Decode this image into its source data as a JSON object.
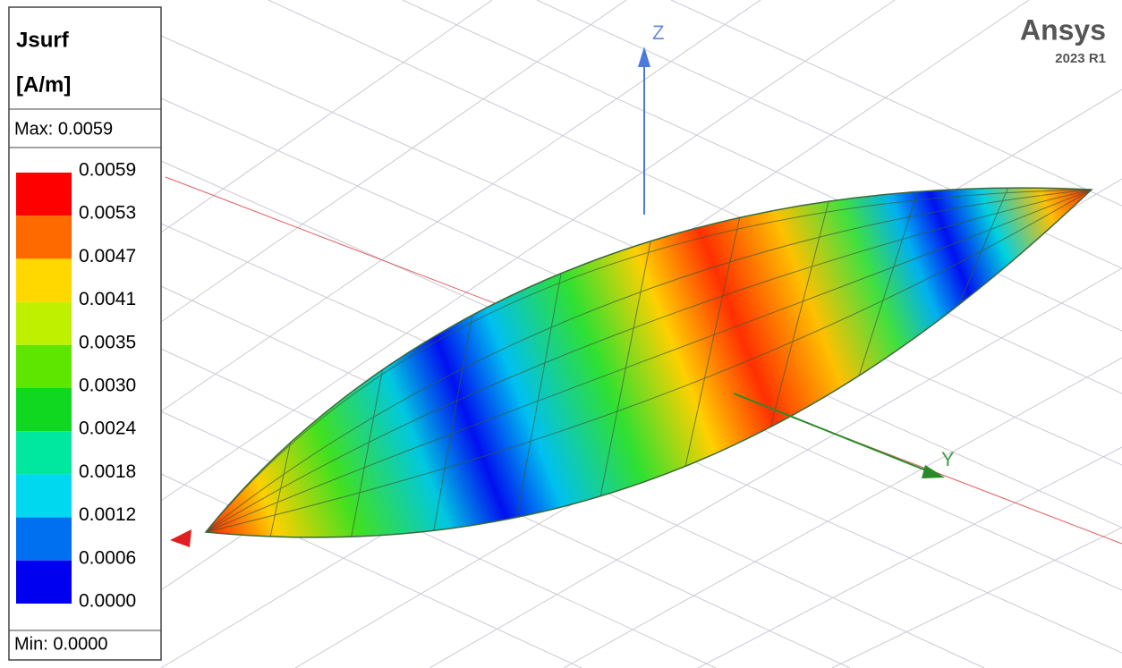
{
  "legend": {
    "quantity": "Jsurf",
    "unit": "[A/m]",
    "max": "Max: 0.0059",
    "min": "Min: 0.0000",
    "scale_labels": [
      "0.0059",
      "0.0053",
      "0.0047",
      "0.0041",
      "0.0035",
      "0.0030",
      "0.0024",
      "0.0018",
      "0.0012",
      "0.0006",
      "0.0000"
    ],
    "colors": [
      "#ff0000",
      "#ff6a00",
      "#ffd800",
      "#bff000",
      "#5fe600",
      "#10d820",
      "#00e8a0",
      "#00d8f0",
      "#0070f0",
      "#0000f0"
    ]
  },
  "branding": {
    "name": "Ansys",
    "version": "2023 R1"
  },
  "axes": {
    "z": "Z",
    "y": "Y"
  }
}
